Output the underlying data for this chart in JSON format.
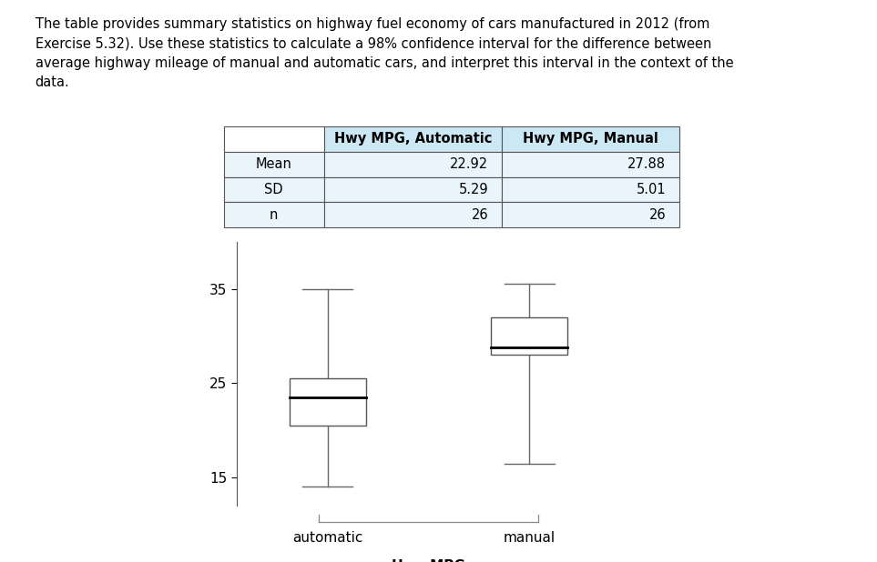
{
  "title_text": "The table provides summary statistics on highway fuel economy of cars manufactured in 2012 (from\nExercise 5.32). Use these statistics to calculate a 98% confidence interval for the difference between\naverage highway mileage of manual and automatic cars, and interpret this interval in the context of the\ndata.",
  "table": {
    "headers": [
      "",
      "Hwy MPG, Automatic",
      "Hwy MPG, Manual"
    ],
    "rows": [
      [
        "Mean",
        "22.92",
        "27.88"
      ],
      [
        "SD",
        "5.29",
        "5.01"
      ],
      [
        "n",
        "26",
        "26"
      ]
    ],
    "header_bg": "#cce8f4",
    "row_bg": "#eaf4fb"
  },
  "boxplot": {
    "automatic": {
      "whisker_low": 14.0,
      "q1": 20.5,
      "median": 23.5,
      "q3": 25.5,
      "whisker_high": 35.0
    },
    "manual": {
      "whisker_low": 16.5,
      "q1": 28.0,
      "median": 28.8,
      "q3": 32.0,
      "whisker_high": 35.5
    }
  },
  "ylim": [
    12,
    40
  ],
  "yticks": [
    15,
    25,
    35
  ],
  "xlabel": "Hwy MPG",
  "categories": [
    "automatic",
    "manual"
  ],
  "box_color": "white",
  "box_edgecolor": "#555555",
  "median_color": "black",
  "whisker_color": "#666666",
  "background_color": "white"
}
